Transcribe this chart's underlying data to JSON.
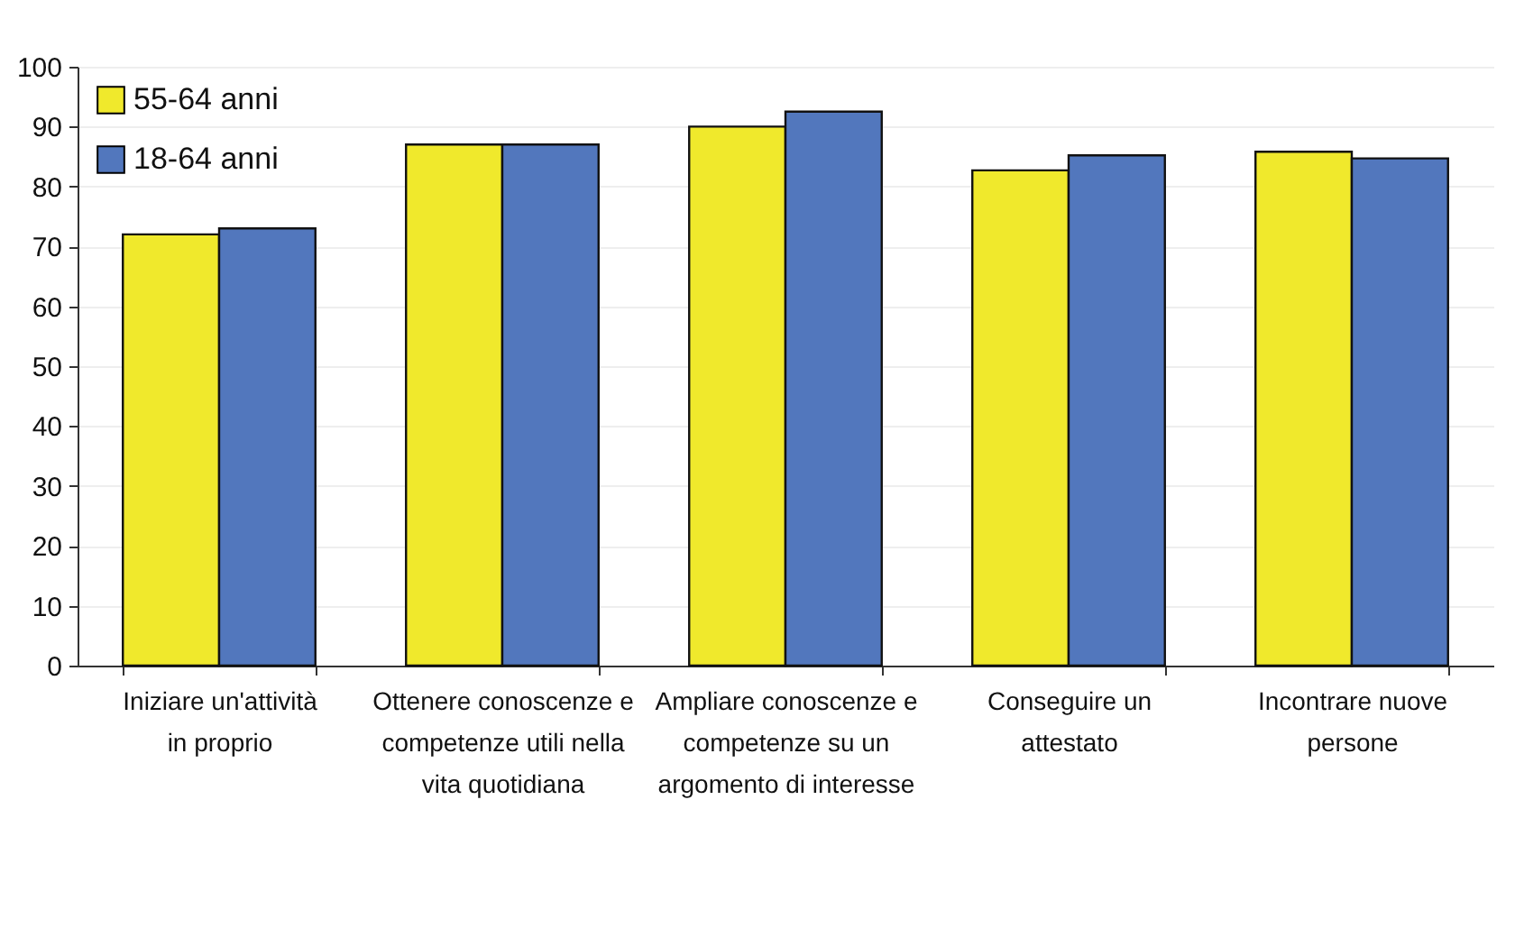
{
  "chart_data": {
    "type": "bar",
    "categories": [
      "Iniziare un'attività in proprio",
      "Ottenere conoscenze e competenze utili nella vita quotidiana",
      "Ampliare conoscenze e competenze su un argomento di interesse",
      "Conseguire un attestato",
      "Incontrare nuove persone"
    ],
    "series": [
      {
        "name": "55-64 anni",
        "color": "#f0e92c",
        "values": [
          72,
          87,
          90,
          82.7,
          85.8
        ]
      },
      {
        "name": "18-64 anni",
        "color": "#5277bd",
        "values": [
          73,
          87,
          92.5,
          85.2,
          84.7
        ]
      }
    ],
    "ylim": [
      0,
      100
    ],
    "yticks": [
      0,
      10,
      20,
      30,
      40,
      50,
      60,
      70,
      80,
      90,
      100
    ],
    "grid": "y",
    "legend": "top left"
  }
}
